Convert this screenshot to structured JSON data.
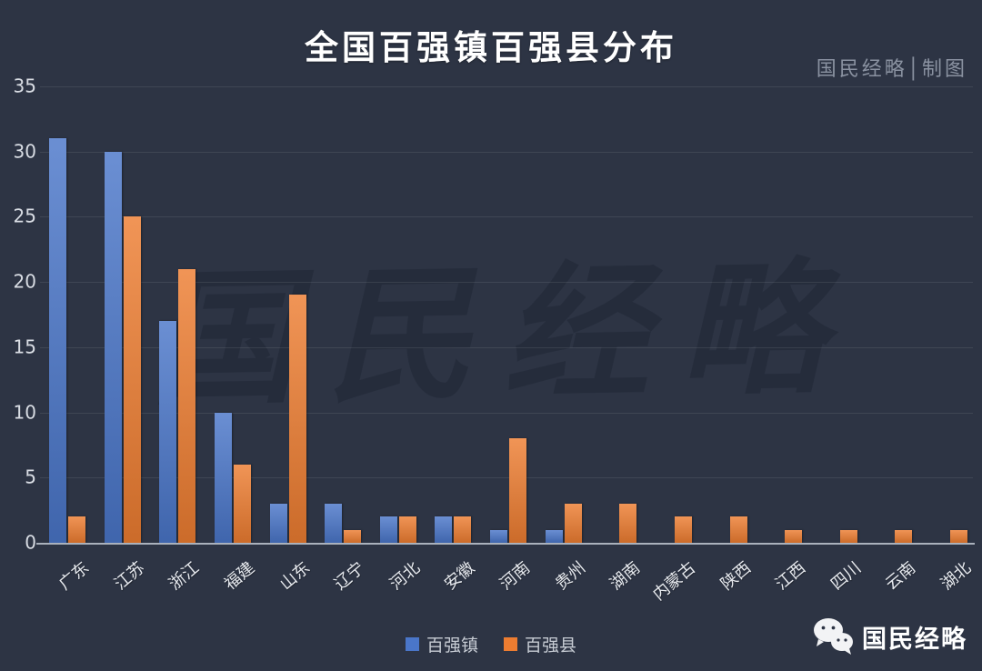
{
  "title": "全国百强镇百强县分布",
  "watermark_top": "国民经略│制图",
  "watermark_center": "国民经略",
  "footer_logo": {
    "icon": "wechat-icon",
    "text": "国民经略"
  },
  "legend": {
    "town_label": "百强镇",
    "county_label": "百强县"
  },
  "colors": {
    "background": "#2d3444",
    "town_blue": "#4a76c9",
    "county_orange": "#ed7d31",
    "grid": "#3b4252",
    "axis_line": "#aab1bc",
    "title_text": "#ffffff",
    "tick_text": "#d9dde4",
    "credit_text": "#8a92a1"
  },
  "chart_data": {
    "type": "bar",
    "title": "全国百强镇百强县分布",
    "categories": [
      "广东",
      "江苏",
      "浙江",
      "福建",
      "山东",
      "辽宁",
      "河北",
      "安徽",
      "河南",
      "贵州",
      "湖南",
      "内蒙古",
      "陕西",
      "江西",
      "四川",
      "云南",
      "湖北"
    ],
    "series": [
      {
        "name": "百强镇",
        "color": "#4a76c9",
        "values": [
          31,
          30,
          17,
          10,
          3,
          3,
          2,
          2,
          1,
          1,
          0,
          0,
          0,
          0,
          0,
          0,
          0
        ]
      },
      {
        "name": "百强县",
        "color": "#ed7d31",
        "values": [
          2,
          25,
          21,
          6,
          19,
          1,
          2,
          2,
          8,
          3,
          3,
          2,
          2,
          1,
          1,
          1,
          1
        ]
      }
    ],
    "xlabel": "",
    "ylabel": "",
    "ylim": [
      0,
      35
    ],
    "yticks": [
      0,
      5,
      10,
      15,
      20,
      25,
      30,
      35
    ],
    "grid": true,
    "legend_position": "bottom"
  }
}
